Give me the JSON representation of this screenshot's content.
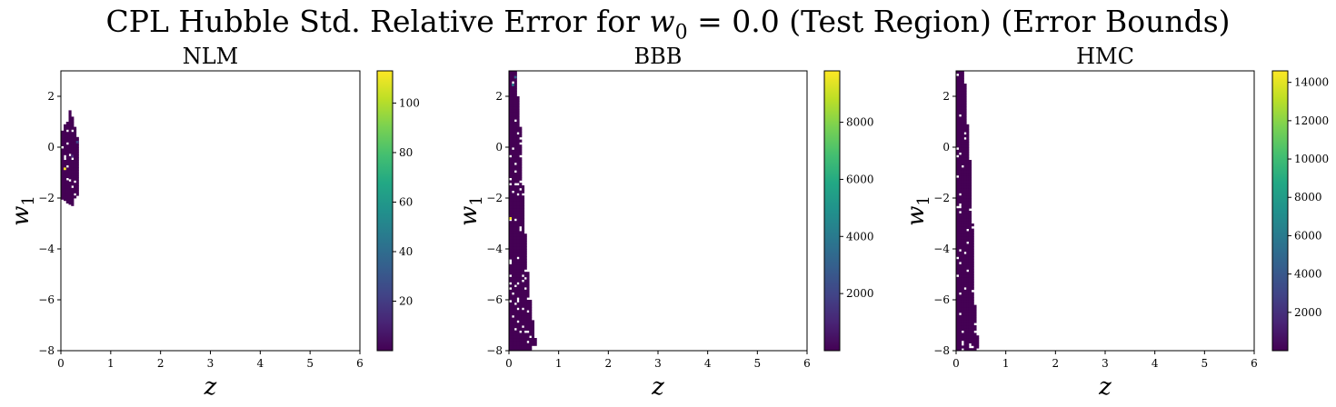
{
  "figure": {
    "title_prefix": "CPL Hubble Std. Relative Error for ",
    "title_var": "w",
    "title_sub": "0",
    "title_suffix": " = 0.0 (Test Region) (Error Bounds)"
  },
  "chart_data": [
    {
      "type": "heatmap",
      "title": "NLM",
      "xlabel": "z",
      "ylabel": "w1",
      "xlim": [
        0,
        6
      ],
      "ylim": [
        -8,
        3
      ],
      "xticks": [
        "0",
        "1",
        "2",
        "3",
        "4",
        "5",
        "6"
      ],
      "yticks": [
        "2",
        "0",
        "−2",
        "−4",
        "−6",
        "−8"
      ],
      "colormap": "viridis",
      "colorbar": {
        "min": 0,
        "max": 113,
        "ticks": [
          20,
          40,
          60,
          80,
          100
        ]
      },
      "columns": [
        {
          "z": 0.03,
          "low": -2.05,
          "high": 0.75
        },
        {
          "z": 0.08,
          "low": -2.1,
          "high": 0.9
        },
        {
          "z": 0.13,
          "low": -2.2,
          "high": 0.95
        },
        {
          "z": 0.18,
          "low": -2.25,
          "high": 1.4
        },
        {
          "z": 0.23,
          "low": -2.3,
          "high": 1.3
        },
        {
          "z": 0.28,
          "low": -2.0,
          "high": 0.8
        },
        {
          "z": 0.33,
          "low": -1.9,
          "high": 0.35
        }
      ],
      "highlights": [
        {
          "z": 0.08,
          "w1": -0.9,
          "value": 110
        },
        {
          "z": 0.33,
          "w1": 0.15,
          "value": 22
        },
        {
          "z": 0.23,
          "w1": -0.4,
          "value": 15
        }
      ]
    },
    {
      "type": "heatmap",
      "title": "BBB",
      "xlabel": "z",
      "ylabel": "w1",
      "xlim": [
        0,
        6
      ],
      "ylim": [
        -8,
        3
      ],
      "xticks": [
        "0",
        "1",
        "2",
        "3",
        "4",
        "5",
        "6"
      ],
      "yticks": [
        "2",
        "0",
        "−2",
        "−4",
        "−6",
        "−8"
      ],
      "colormap": "viridis",
      "colorbar": {
        "min": 0,
        "max": 9800,
        "ticks": [
          2000,
          4000,
          6000,
          8000
        ]
      },
      "columns": [
        {
          "z": 0.03,
          "low": -8,
          "high": 3
        },
        {
          "z": 0.08,
          "low": -8,
          "high": 3
        },
        {
          "z": 0.13,
          "low": -8,
          "high": 3
        },
        {
          "z": 0.18,
          "low": -8,
          "high": 2.0
        },
        {
          "z": 0.23,
          "low": -8,
          "high": 0.8
        },
        {
          "z": 0.28,
          "low": -8,
          "high": -1.5
        },
        {
          "z": 0.33,
          "low": -8,
          "high": -3.4
        },
        {
          "z": 0.38,
          "low": -8,
          "high": -4.9
        },
        {
          "z": 0.43,
          "low": -8,
          "high": -6.0
        },
        {
          "z": 0.48,
          "low": -7.8,
          "high": -6.8
        },
        {
          "z": 0.53,
          "low": -7.8,
          "high": -7.5
        }
      ],
      "highlights": [
        {
          "z": 0.03,
          "w1": -2.85,
          "value": 9500
        },
        {
          "z": 0.08,
          "w1": 2.4,
          "value": 3800
        },
        {
          "z": 0.13,
          "w1": 2.7,
          "value": 2500
        }
      ]
    },
    {
      "type": "heatmap",
      "title": "HMC",
      "xlabel": "z",
      "ylabel": "w1",
      "xlim": [
        0,
        6
      ],
      "ylim": [
        -8,
        3
      ],
      "xticks": [
        "0",
        "1",
        "2",
        "3",
        "4",
        "5",
        "6"
      ],
      "yticks": [
        "2",
        "0",
        "−2",
        "−4",
        "−6",
        "−8"
      ],
      "colormap": "viridis",
      "colorbar": {
        "min": 0,
        "max": 14600,
        "ticks": [
          2000,
          4000,
          6000,
          8000,
          10000,
          12000,
          14000
        ]
      },
      "columns": [
        {
          "z": 0.03,
          "low": -8,
          "high": 3
        },
        {
          "z": 0.08,
          "low": -8,
          "high": 3
        },
        {
          "z": 0.13,
          "low": -8,
          "high": 3
        },
        {
          "z": 0.18,
          "low": -8,
          "high": 2.5
        },
        {
          "z": 0.23,
          "low": -8,
          "high": 0.9
        },
        {
          "z": 0.28,
          "low": -8,
          "high": -0.5
        },
        {
          "z": 0.33,
          "low": -8,
          "high": -3.0
        },
        {
          "z": 0.38,
          "low": -8,
          "high": -6.2
        },
        {
          "z": 0.43,
          "low": -7.9,
          "high": -7.4
        }
      ],
      "highlights": []
    }
  ]
}
